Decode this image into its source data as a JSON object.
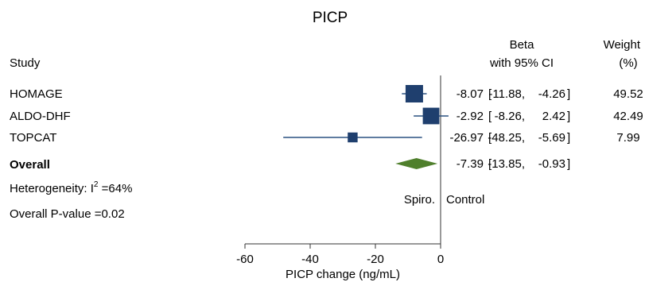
{
  "chart_data": {
    "type": "forest",
    "title": "PICP",
    "xlabel": "PICP change (ng/mL)",
    "xlim": [
      -60,
      0
    ],
    "xticks": [
      -60,
      -40,
      -20,
      0
    ],
    "colors": {
      "marker": "#1f3f6e",
      "ci_line": "#2a5080",
      "diamond": "#4f7f2c",
      "axis": "#333333"
    },
    "headers": {
      "study": "Study",
      "beta_line1": "Beta",
      "beta_line2": "with 95% CI",
      "weight_line1": "Weight",
      "weight_line2": "(%)"
    },
    "studies": [
      {
        "name": "HOMAGE",
        "beta": -8.07,
        "lower": -11.88,
        "upper": -4.26,
        "weight": 49.52,
        "beta_text": "-8.07",
        "lower_text": "-11.88",
        "upper_text": "-4.26",
        "weight_text": "49.52"
      },
      {
        "name": "ALDO-DHF",
        "beta": -2.92,
        "lower": -8.26,
        "upper": 2.42,
        "weight": 42.49,
        "beta_text": "-2.92",
        "lower_text": "-8.26",
        "upper_text": "2.42",
        "weight_text": "42.49"
      },
      {
        "name": "TOPCAT",
        "beta": -26.97,
        "lower": -48.25,
        "upper": -5.69,
        "weight": 7.99,
        "beta_text": "-26.97",
        "lower_text": "-48.25",
        "upper_text": "-5.69",
        "weight_text": "7.99"
      }
    ],
    "overall": {
      "name": "Overall",
      "beta": -7.39,
      "lower": -13.85,
      "upper": -0.93,
      "beta_text": "-7.39",
      "lower_text": "-13.85",
      "upper_text": "-0.93"
    },
    "heterogeneity_prefix": "Heterogeneity: I",
    "heterogeneity_sup": "2",
    "heterogeneity_value": " =64%",
    "overall_p": "Overall P-value =0.02",
    "favors_left": "Spiro.",
    "favors_right": "Control"
  }
}
